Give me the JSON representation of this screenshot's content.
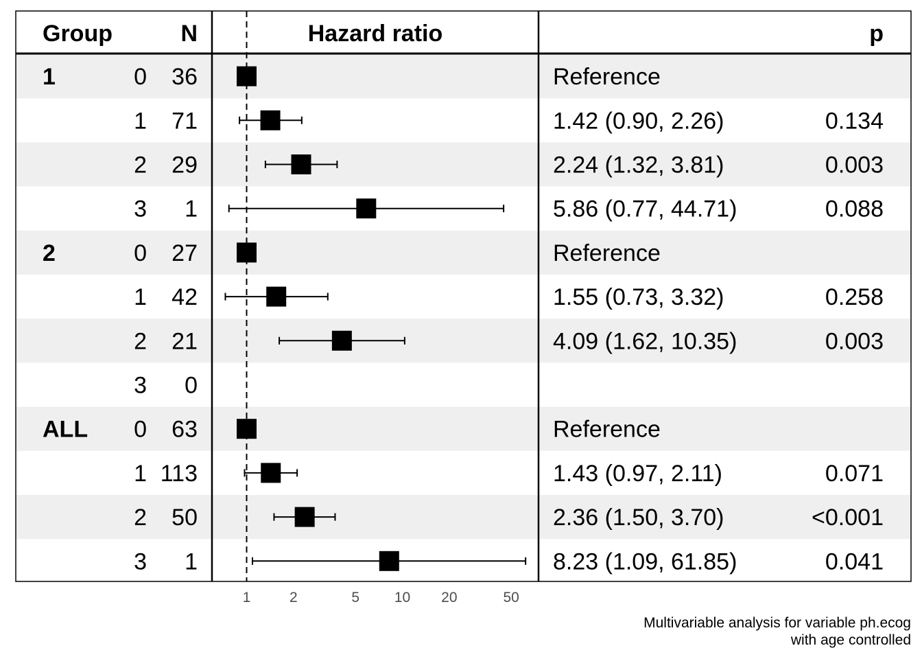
{
  "chart_data": {
    "type": "forest",
    "headers": {
      "group": "Group",
      "n": "N",
      "plot": "Hazard ratio",
      "estimate": "",
      "p": "p"
    },
    "scale": "log",
    "xlim": [
      0.7,
      62
    ],
    "x_ticks": [
      1,
      2,
      5,
      10,
      20,
      50
    ],
    "x_tick_labels": [
      "1",
      "2",
      "5",
      "10",
      "20",
      "50"
    ],
    "reference_line": 1,
    "rows": [
      {
        "group": "1",
        "level": "0",
        "n": "36",
        "hr": 1.0,
        "lo": null,
        "hi": null,
        "estimate": "Reference",
        "p": ""
      },
      {
        "group": "",
        "level": "1",
        "n": "71",
        "hr": 1.42,
        "lo": 0.9,
        "hi": 2.26,
        "estimate": "1.42 (0.90, 2.26)",
        "p": "0.134"
      },
      {
        "group": "",
        "level": "2",
        "n": "29",
        "hr": 2.24,
        "lo": 1.32,
        "hi": 3.81,
        "estimate": "2.24 (1.32, 3.81)",
        "p": "0.003"
      },
      {
        "group": "",
        "level": "3",
        "n": "1",
        "hr": 5.86,
        "lo": 0.77,
        "hi": 44.71,
        "estimate": "5.86 (0.77, 44.71)",
        "p": "0.088"
      },
      {
        "group": "2",
        "level": "0",
        "n": "27",
        "hr": 1.0,
        "lo": null,
        "hi": null,
        "estimate": "Reference",
        "p": ""
      },
      {
        "group": "",
        "level": "1",
        "n": "42",
        "hr": 1.55,
        "lo": 0.73,
        "hi": 3.32,
        "estimate": "1.55 (0.73, 3.32)",
        "p": "0.258"
      },
      {
        "group": "",
        "level": "2",
        "n": "21",
        "hr": 4.09,
        "lo": 1.62,
        "hi": 10.35,
        "estimate": "4.09 (1.62, 10.35)",
        "p": "0.003"
      },
      {
        "group": "",
        "level": "3",
        "n": "0",
        "hr": null,
        "lo": null,
        "hi": null,
        "estimate": "",
        "p": ""
      },
      {
        "group": "ALL",
        "level": "0",
        "n": "63",
        "hr": 1.0,
        "lo": null,
        "hi": null,
        "estimate": "Reference",
        "p": ""
      },
      {
        "group": "",
        "level": "1",
        "n": "113",
        "hr": 1.43,
        "lo": 0.97,
        "hi": 2.11,
        "estimate": "1.43 (0.97, 2.11)",
        "p": "0.071"
      },
      {
        "group": "",
        "level": "2",
        "n": "50",
        "hr": 2.36,
        "lo": 1.5,
        "hi": 3.7,
        "estimate": "2.36 (1.50, 3.70)",
        "p": "<0.001"
      },
      {
        "group": "",
        "level": "3",
        "n": "1",
        "hr": 8.23,
        "lo": 1.09,
        "hi": 61.85,
        "estimate": "8.23 (1.09, 61.85)",
        "p": "0.041"
      }
    ],
    "colors": {
      "band": "#efefef",
      "marker": "#000000",
      "tick_text": "#4d4d4d"
    }
  },
  "caption": {
    "line1": "Multivariable analysis for variable ph.ecog",
    "line2": "with age controlled"
  }
}
